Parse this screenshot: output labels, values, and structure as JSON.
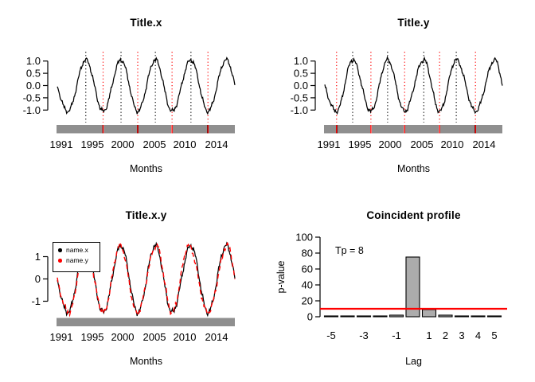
{
  "figure": {
    "background": "#ffffff",
    "foreground": "#000000",
    "accent_red": "#ff0000",
    "bar_fill": "#acacac"
  },
  "chart_data": [
    {
      "id": "title_x",
      "type": "line",
      "title": "Title.x",
      "xlabel": "Months",
      "x_tick_labels": [
        "1991",
        "1995",
        "2000",
        "2005",
        "2010",
        "2014"
      ],
      "y_tick_values": [
        1.0,
        0.5,
        0.0,
        -0.5,
        -1.0
      ],
      "y_tick_labels": [
        "1.0",
        "0.5",
        "0.0",
        "-0.5",
        "-1.0"
      ],
      "ylim": [
        -1.3,
        1.3
      ],
      "n_points": 288,
      "x_unit": "monthly index 1991-2014, monthly rug ticks on axis",
      "series": [
        {
          "name": "x",
          "color": "#000000",
          "line": "solid",
          "amplitude": 1.05,
          "noise": 0.07,
          "seed": 1.3,
          "start": "zero-descending",
          "turning_points": [
            {
              "m": 17,
              "v": -1.05
            },
            {
              "m": 46,
              "v": 1.05
            },
            {
              "m": 74,
              "v": -1.05
            },
            {
              "m": 103,
              "v": 1.05
            },
            {
              "m": 130,
              "v": -1.05
            },
            {
              "m": 158.5,
              "v": 1.05
            },
            {
              "m": 185.5,
              "v": -1.05
            },
            {
              "m": 216,
              "v": 1.05
            },
            {
              "m": 243.5,
              "v": -1.05
            },
            {
              "m": 273,
              "v": 1.05
            }
          ]
        }
      ],
      "peak_marks": {
        "style": "dotted vertical",
        "color": "#000000",
        "months": [
          46,
          103,
          158.5,
          216
        ]
      },
      "trough_marks": {
        "style": "dotted vertical",
        "color": "#ff0000",
        "months": [
          74,
          130,
          185.5,
          243.5
        ]
      }
    },
    {
      "id": "title_y",
      "type": "line",
      "title": "Title.y",
      "xlabel": "Months",
      "x_tick_labels": [
        "1991",
        "1995",
        "2000",
        "2005",
        "2010",
        "2014"
      ],
      "y_tick_values": [
        1.0,
        0.5,
        0.0,
        -0.5,
        -1.0
      ],
      "y_tick_labels": [
        "1.0",
        "0.5",
        "0.0",
        "-0.5",
        "-1.0"
      ],
      "ylim": [
        -1.3,
        1.3
      ],
      "n_points": 288,
      "x_unit": "monthly index 1991-2014, monthly rug ticks on axis",
      "series": [
        {
          "name": "y",
          "color": "#000000",
          "line": "solid",
          "amplitude": 1.05,
          "noise": 0.07,
          "seed": 4.7,
          "start": "zero-descending",
          "turning_points": [
            {
              "m": 19,
              "v": -1.05
            },
            {
              "m": 45,
              "v": 1.05
            },
            {
              "m": 74.5,
              "v": -1.05
            },
            {
              "m": 101.5,
              "v": 1.05
            },
            {
              "m": 129,
              "v": -1.05
            },
            {
              "m": 160,
              "v": 1.05
            },
            {
              "m": 185.5,
              "v": -1.05
            },
            {
              "m": 212.5,
              "v": 1.05
            },
            {
              "m": 243.5,
              "v": -1.05
            },
            {
              "m": 275,
              "v": 1.05
            }
          ]
        }
      ],
      "peak_marks": {
        "style": "dotted vertical",
        "color": "#000000",
        "months": [
          45,
          101.5,
          160,
          212.5
        ]
      },
      "trough_marks": {
        "style": "dotted vertical",
        "color": "#ff0000",
        "months": [
          19,
          74.5,
          129,
          185.5,
          243.5
        ]
      }
    },
    {
      "id": "title_x_y",
      "type": "line",
      "title": "Title.x.y",
      "xlabel": "Months",
      "x_tick_labels": [
        "1991",
        "1995",
        "2000",
        "2005",
        "2010",
        "2014"
      ],
      "y_tick_values": [
        1,
        0,
        -1
      ],
      "y_tick_labels": [
        "1",
        "0",
        "-1"
      ],
      "ylim": [
        -1.75,
        1.75
      ],
      "n_points": 288,
      "x_unit": "monthly index 1991-2014, monthly rug ticks on axis",
      "legend": {
        "position": "top-left",
        "entries": [
          {
            "label": "name.x",
            "color": "#000000",
            "marker": "dot"
          },
          {
            "label": "name.y",
            "color": "#ff0000",
            "marker": "dot"
          }
        ]
      },
      "series": [
        {
          "name": "name.x",
          "color": "#000000",
          "line": "solid",
          "amplitude": 1.5,
          "noise": 0.07,
          "seed": 1.3,
          "start": "zero-descending",
          "turning_points": [
            {
              "m": 17,
              "v": -1.5
            },
            {
              "m": 46,
              "v": 1.5
            },
            {
              "m": 74,
              "v": -1.5
            },
            {
              "m": 103,
              "v": 1.5
            },
            {
              "m": 130,
              "v": -1.5
            },
            {
              "m": 158.5,
              "v": 1.5
            },
            {
              "m": 185.5,
              "v": -1.5
            },
            {
              "m": 216,
              "v": 1.5
            },
            {
              "m": 243.5,
              "v": -1.5
            },
            {
              "m": 273,
              "v": 1.5
            }
          ]
        },
        {
          "name": "name.y",
          "color": "#ff0000",
          "line": "dashed",
          "amplitude": 1.5,
          "noise": 0.07,
          "seed": 4.7,
          "start": "zero-descending",
          "turning_points": [
            {
              "m": 19,
              "v": -1.5
            },
            {
              "m": 45,
              "v": 1.5
            },
            {
              "m": 74.5,
              "v": -1.5
            },
            {
              "m": 101.5,
              "v": 1.5
            },
            {
              "m": 129,
              "v": -1.5
            },
            {
              "m": 160,
              "v": 1.5
            },
            {
              "m": 185.5,
              "v": -1.5
            },
            {
              "m": 212.5,
              "v": 1.5
            },
            {
              "m": 243.5,
              "v": -1.5
            },
            {
              "m": 275,
              "v": 1.5
            }
          ]
        }
      ]
    },
    {
      "id": "coincident_profile",
      "type": "bar",
      "title": "Coincident profile",
      "xlabel": "Lag",
      "ylabel": "p-value",
      "annotation": "Tp = 8",
      "categories": [
        -5,
        -4,
        -3,
        -2,
        -1,
        0,
        1,
        2,
        3,
        4,
        5
      ],
      "values": [
        1,
        1,
        1,
        1,
        2,
        75,
        9,
        2,
        1,
        1,
        1
      ],
      "x_ticks_shown": [
        {
          "lag": -5,
          "label": "-5"
        },
        {
          "lag": -3,
          "label": "-3"
        },
        {
          "lag": -1,
          "label": "-1"
        },
        {
          "lag": 1,
          "label": "1"
        },
        {
          "lag": 2,
          "label": "2"
        },
        {
          "lag": 3,
          "label": "3"
        },
        {
          "lag": 4,
          "label": "4"
        },
        {
          "lag": 5,
          "label": "5"
        }
      ],
      "y_tick_values": [
        0,
        20,
        40,
        60,
        80,
        100
      ],
      "y_tick_labels": [
        "0",
        "20",
        "40",
        "60",
        "80",
        "100"
      ],
      "ylim": [
        0,
        100
      ],
      "threshold_line": {
        "value": 10,
        "color": "#ff0000"
      },
      "bar_fill": "#acacac",
      "bar_edge": "#000000",
      "legend_position": "none"
    }
  ]
}
